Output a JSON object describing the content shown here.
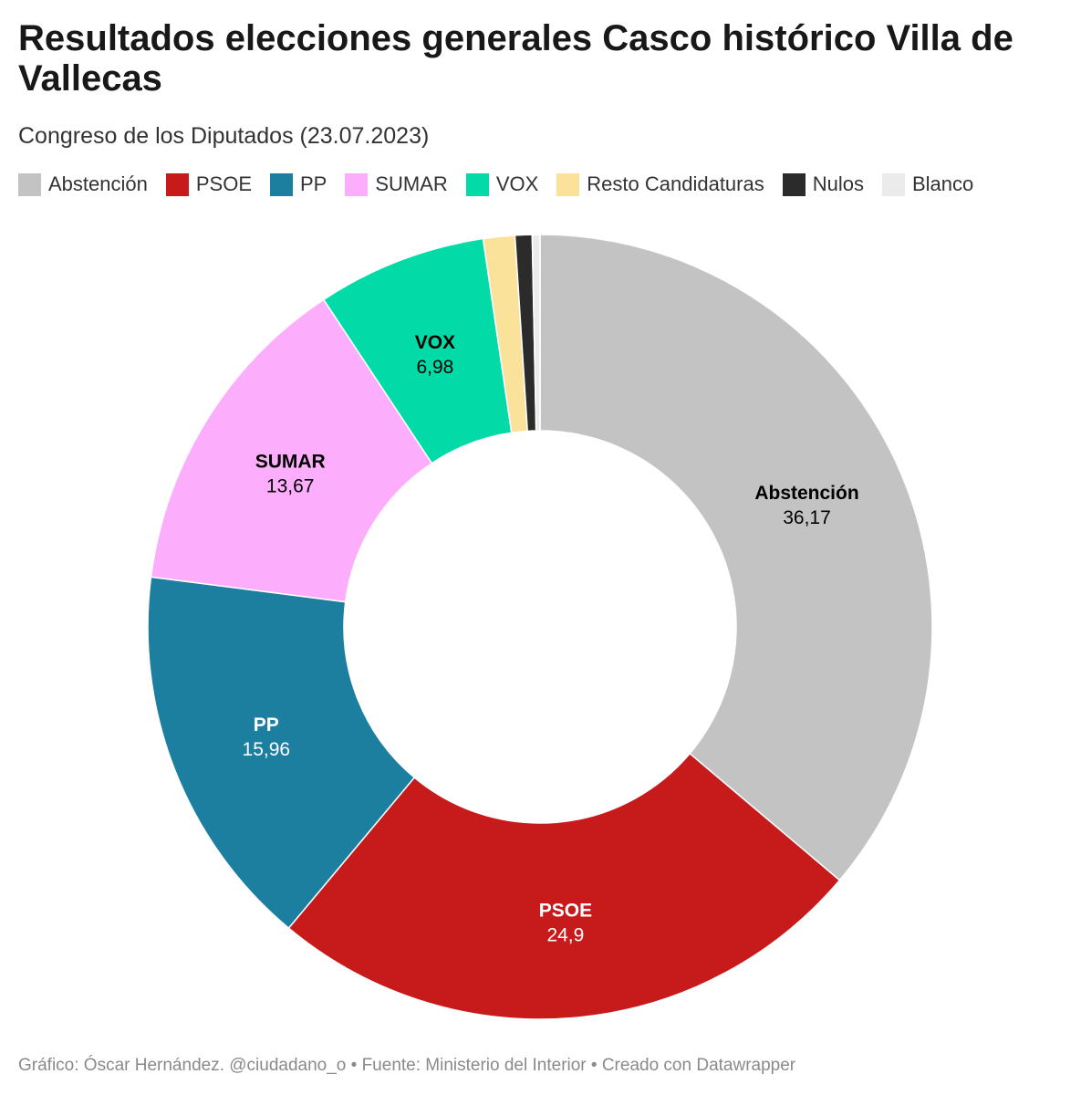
{
  "header": {
    "title": "Resultados elecciones generales Casco histórico Villa de Vallecas",
    "subtitle": "Congreso de los Diputados (23.07.2023)"
  },
  "footer": {
    "text": "Gráfico: Óscar Hernández. @ciudadano_o • Fuente: Ministerio del Interior  • Creado con Datawrapper"
  },
  "chart_data": {
    "type": "pie",
    "variant": "donut",
    "title": "Resultados elecciones generales Casco histórico Villa de Vallecas",
    "subtitle": "Congreso de los Diputados (23.07.2023)",
    "legend_position": "top",
    "slices": [
      {
        "name": "Abstención",
        "value": 36.17,
        "display": "36,17",
        "color": "#c3c3c3",
        "label_color": "#000000",
        "show_label": true
      },
      {
        "name": "PSOE",
        "value": 24.9,
        "display": "24,9",
        "color": "#c71b1b",
        "label_color": "#ffffff",
        "show_label": true
      },
      {
        "name": "PP",
        "value": 15.96,
        "display": "15,96",
        "color": "#1d7fa0",
        "label_color": "#ffffff",
        "show_label": true
      },
      {
        "name": "SUMAR",
        "value": 13.67,
        "display": "13,67",
        "color": "#fcaefc",
        "label_color": "#000000",
        "show_label": true
      },
      {
        "name": "VOX",
        "value": 6.98,
        "display": "6,98",
        "color": "#02dba7",
        "label_color": "#000000",
        "show_label": true
      },
      {
        "name": "Resto Candidaturas",
        "value": 1.3,
        "display": "1,3",
        "color": "#fbe29a",
        "label_color": "#000000",
        "show_label": false
      },
      {
        "name": "Nulos",
        "value": 0.7,
        "display": "0,7",
        "color": "#2b2b2b",
        "label_color": "#ffffff",
        "show_label": false
      },
      {
        "name": "Blanco",
        "value": 0.32,
        "display": "0,32",
        "color": "#ebebeb",
        "label_color": "#000000",
        "show_label": false
      }
    ]
  }
}
